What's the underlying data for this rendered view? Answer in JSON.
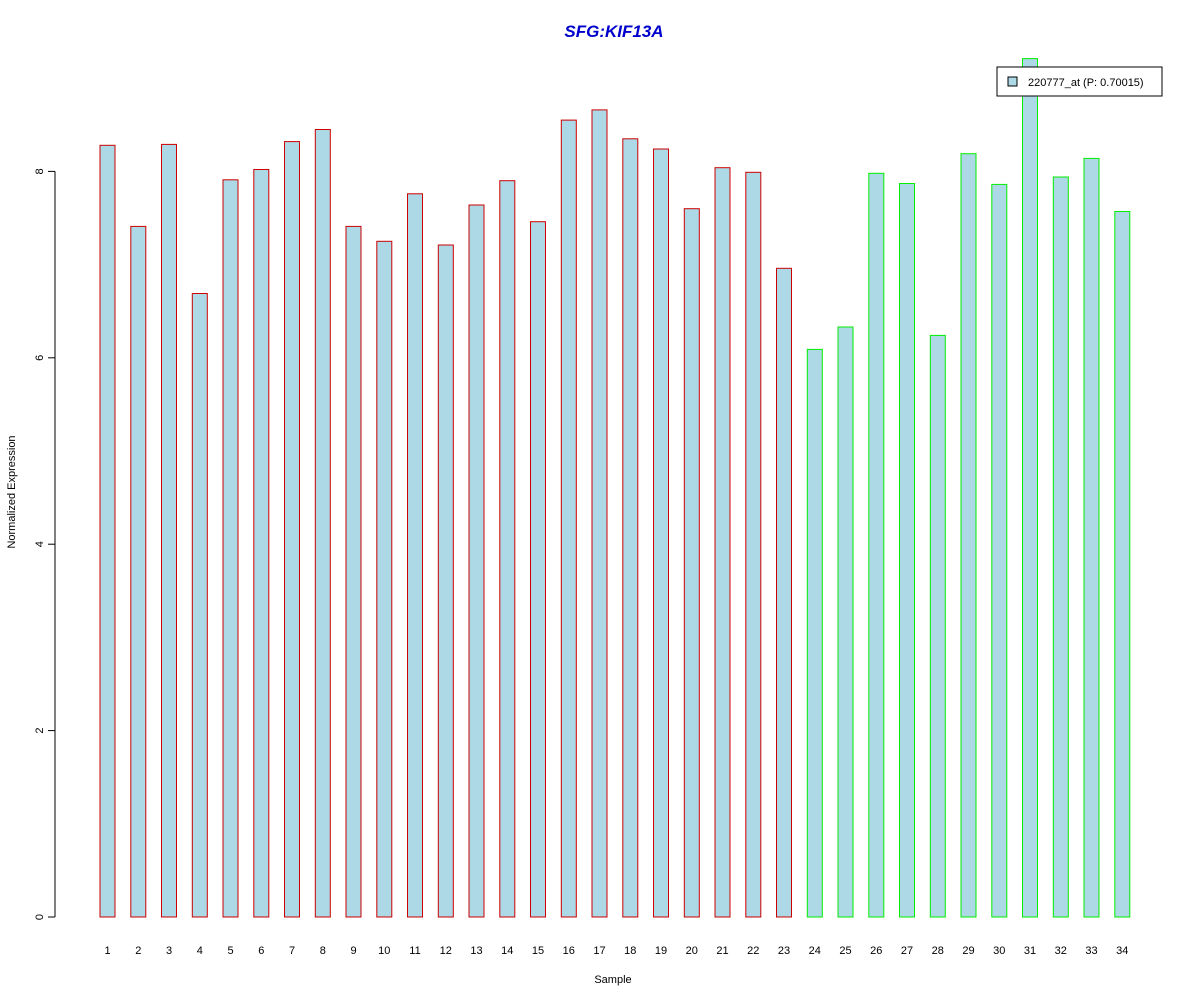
{
  "chart_data": {
    "type": "bar",
    "title": "SFG:KIF13A",
    "xlabel": "Sample",
    "ylabel": "Normalized Expression",
    "categories": [
      "1",
      "2",
      "3",
      "4",
      "5",
      "6",
      "7",
      "8",
      "9",
      "10",
      "11",
      "12",
      "13",
      "14",
      "15",
      "16",
      "17",
      "18",
      "19",
      "20",
      "21",
      "22",
      "23",
      "24",
      "25",
      "26",
      "27",
      "28",
      "29",
      "30",
      "31",
      "32",
      "33",
      "34"
    ],
    "series": [
      {
        "name": "220777_at (P: 0.70015)",
        "values": [
          8.28,
          7.41,
          8.29,
          6.69,
          7.91,
          8.02,
          8.32,
          8.45,
          7.41,
          7.25,
          7.76,
          7.21,
          7.64,
          7.9,
          7.46,
          8.55,
          8.66,
          8.35,
          8.24,
          7.6,
          8.04,
          7.99,
          6.96,
          6.09,
          6.33,
          7.98,
          7.87,
          6.24,
          8.19,
          7.86,
          9.21,
          7.94,
          8.14,
          7.57
        ]
      }
    ],
    "groups": [
      {
        "from": 0,
        "to": 22,
        "border_color": "#cc0000"
      },
      {
        "from": 23,
        "to": 33,
        "border_color": "#00ee00"
      }
    ],
    "fill_color": "#add8e6",
    "title_color": "#0000cc",
    "yticks": [
      0,
      2,
      4,
      6,
      8
    ],
    "ylim": [
      0,
      9.25
    ],
    "grid": false,
    "legend_position": "top-right"
  }
}
